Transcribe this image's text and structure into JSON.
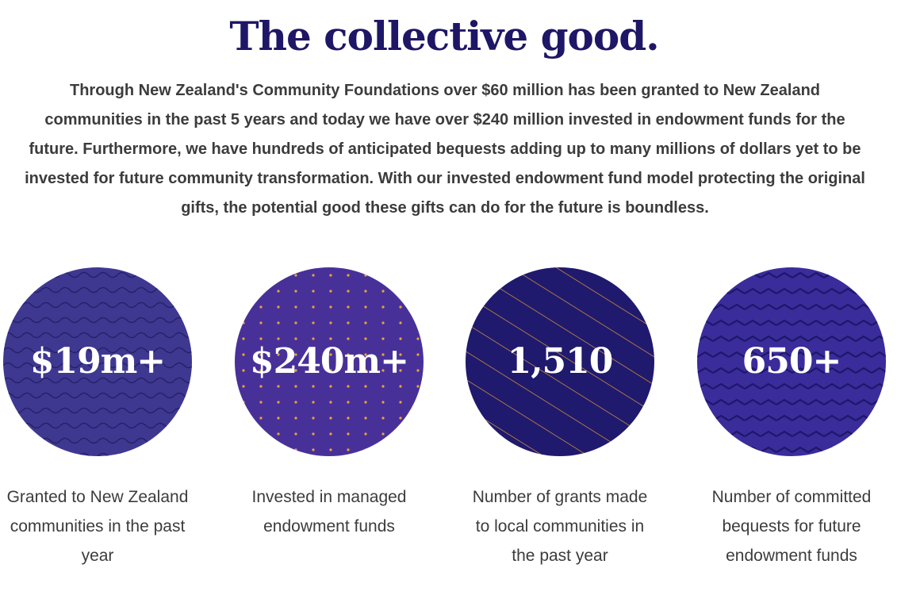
{
  "page": {
    "title": "The collective good.",
    "intro": "Through New Zealand's Community Foundations over $60 million has been granted to New Zealand communities in the past 5 years and today we have over $240 million invested in endowment funds for the future. Furthermore, we have hundreds of anticipated bequests adding up to many millions of dollars yet to be invested for future community transformation. With our invested endowment fund model protecting the original gifts, the potential good these gifts can do for the future is boundless."
  },
  "colors": {
    "title": "#1e1666",
    "body_text": "#3c3c3c",
    "circle_waves": "#3f3891",
    "circle_dots": "#473199",
    "circle_stripes": "#1f1a6d",
    "circle_zigzag": "#3a2c9b",
    "accent_orange": "#f0a03c"
  },
  "stats": [
    {
      "value": "$19m+",
      "caption": "Granted to New Zealand communities in the past year",
      "pattern": "waves"
    },
    {
      "value": "$240m+",
      "caption": "Invested in managed endowment funds",
      "pattern": "dots"
    },
    {
      "value": "1,510",
      "caption": "Number of grants made to local communities in the past year",
      "pattern": "stripes"
    },
    {
      "value": "650+",
      "caption": "Number of committed bequests for future endowment funds",
      "pattern": "zigzag"
    }
  ]
}
